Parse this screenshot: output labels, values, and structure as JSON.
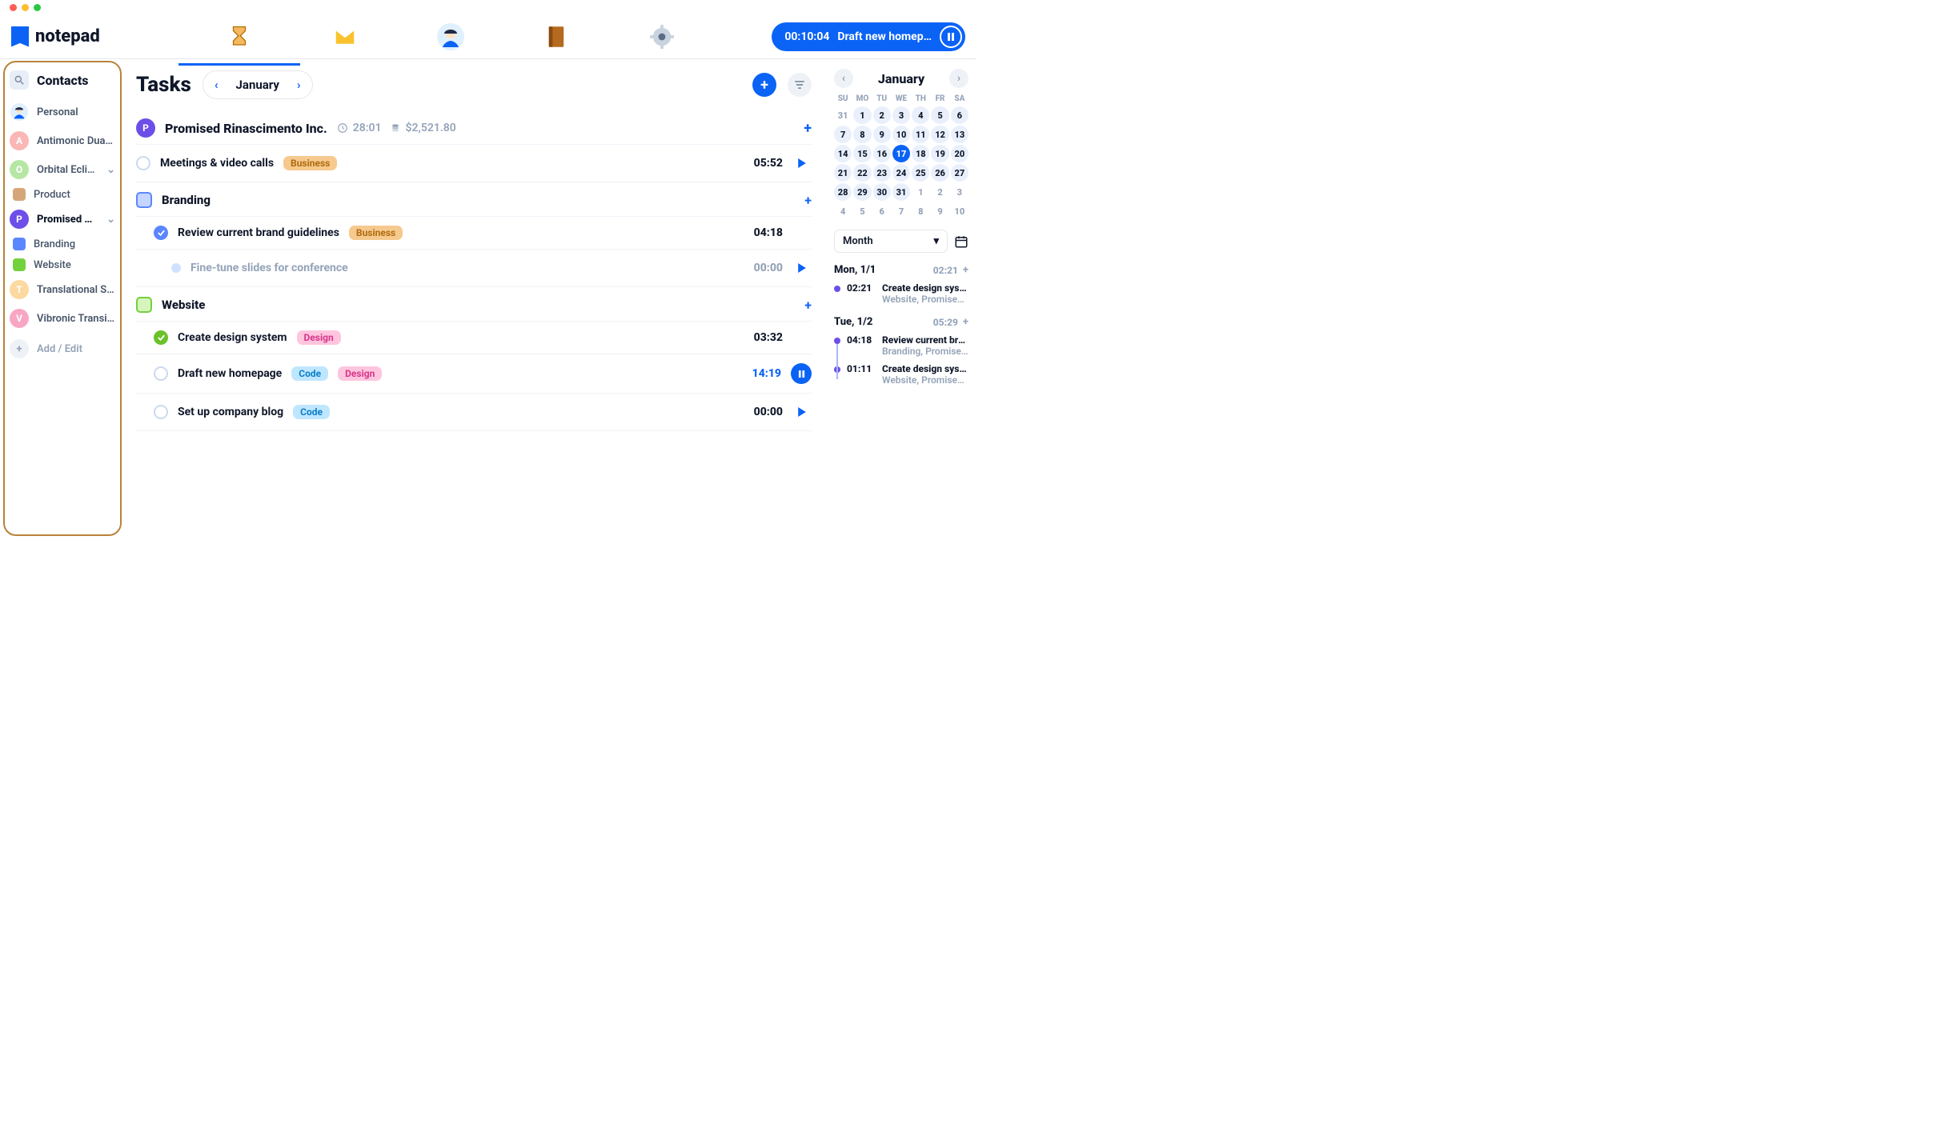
{
  "app": {
    "name": "notepad"
  },
  "titlebar": {
    "dots": [
      "#ff5f57",
      "#febc2e",
      "#28c840"
    ]
  },
  "nav": {
    "active_index": 0,
    "icons": [
      "hourglass-icon",
      "mail-icon",
      "avatar-icon",
      "notebook-icon",
      "gear-icon"
    ]
  },
  "timer_pill": {
    "elapsed": "00:10:04",
    "task": "Draft new homep…"
  },
  "sidebar": {
    "title": "Contacts",
    "items": [
      {
        "type": "contact",
        "label": "Personal",
        "avatar": "img",
        "color": "#e8eef7"
      },
      {
        "type": "contact",
        "label": "Antimonic Dual AG",
        "avatar": "A",
        "color": "#fbb6b6"
      },
      {
        "type": "contact",
        "label": "Orbital Eclipse LLC",
        "avatar": "O",
        "color": "#b6e6a4",
        "chevron": true
      },
      {
        "type": "sub",
        "label": "Product",
        "color": "#d5a778"
      },
      {
        "type": "contact",
        "label": "Promised Rinascimen…",
        "avatar": "P",
        "color": "#6d4ee8",
        "bold": true,
        "chevron": true
      },
      {
        "type": "sub",
        "label": "Branding",
        "color": "#5a86ff"
      },
      {
        "type": "sub",
        "label": "Website",
        "color": "#73d13d"
      },
      {
        "type": "contact",
        "label": "Translational Symmet…",
        "avatar": "T",
        "color": "#fcd9a1"
      },
      {
        "type": "contact",
        "label": "Vibronic Transition G…",
        "avatar": "V",
        "color": "#f7a7c4"
      }
    ],
    "add_label": "Add / Edit"
  },
  "main": {
    "title": "Tasks",
    "month": "January",
    "group": {
      "name": "Promised Rinascimento Inc.",
      "avatar": "P",
      "color": "#6d4ee8",
      "time": "28:01",
      "amount": "$2,521.80"
    },
    "tasks": [
      {
        "level": 0,
        "name": "Meetings & video calls",
        "done": false,
        "tags": [
          {
            "text": "Business",
            "bg": "#f6c98e",
            "fg": "#b06c0d"
          }
        ],
        "time": "05:52",
        "play": true
      },
      {
        "level": 0,
        "section": true,
        "name": "Branding",
        "sq_bg": "#c5d5ff",
        "sq_border": "#5a86ff"
      },
      {
        "level": 1,
        "name": "Review current brand guidelines",
        "done": true,
        "done_color": "#5a86ff",
        "tags": [
          {
            "text": "Business",
            "bg": "#f6c98e",
            "fg": "#b06c0d"
          }
        ],
        "time": "04:18"
      },
      {
        "level": 2,
        "name": "Fine-tune slides for conference",
        "dim": true,
        "dot": "#cfe2ff",
        "time": "00:00",
        "play": true,
        "time_dim": true
      },
      {
        "level": 0,
        "section": true,
        "name": "Website",
        "sq_bg": "#d7f4bd",
        "sq_border": "#73d13d"
      },
      {
        "level": 1,
        "name": "Create design system",
        "done": true,
        "done_color": "#6ac22a",
        "tags": [
          {
            "text": "Design",
            "bg": "#ffc5de",
            "fg": "#d6368b"
          }
        ],
        "time": "03:32"
      },
      {
        "level": 1,
        "name": "Draft new homepage",
        "done": false,
        "tags": [
          {
            "text": "Code",
            "bg": "#bfe6ff",
            "fg": "#0b7fc7"
          },
          {
            "text": "Design",
            "bg": "#ffc5de",
            "fg": "#d6368b"
          }
        ],
        "time": "14:19",
        "pause": true,
        "time_accent": true
      },
      {
        "level": 1,
        "name": "Set up company blog",
        "done": false,
        "tags": [
          {
            "text": "Code",
            "bg": "#bfe6ff",
            "fg": "#0b7fc7"
          }
        ],
        "time": "00:00",
        "play": true
      }
    ]
  },
  "calendar": {
    "title": "January",
    "dow": [
      "SU",
      "MO",
      "TU",
      "WE",
      "TH",
      "FR",
      "SA"
    ],
    "selected": 17,
    "leading": [
      31
    ],
    "days": 31,
    "trailing": [
      1,
      2,
      3,
      4,
      5,
      6,
      7,
      8,
      9,
      10
    ],
    "view": "Month"
  },
  "agenda": [
    {
      "day": "Mon, 1/1",
      "total": "02:21",
      "events": [
        {
          "dot": "#6d4ee8",
          "time": "02:21",
          "title": "Create design system",
          "sub": "Website, Promised Rinas…"
        }
      ]
    },
    {
      "day": "Tue, 1/2",
      "total": "05:29",
      "events": [
        {
          "dot": "#6d4ee8",
          "time": "04:18",
          "title": "Review current brand…",
          "sub": "Branding, Promised Rinas…"
        },
        {
          "dot": "#6d4ee8",
          "time": "01:11",
          "title": "Create design system",
          "sub": "Website, Promised Rinas…"
        }
      ]
    }
  ],
  "colors": {
    "accent": "#0b63f6"
  }
}
